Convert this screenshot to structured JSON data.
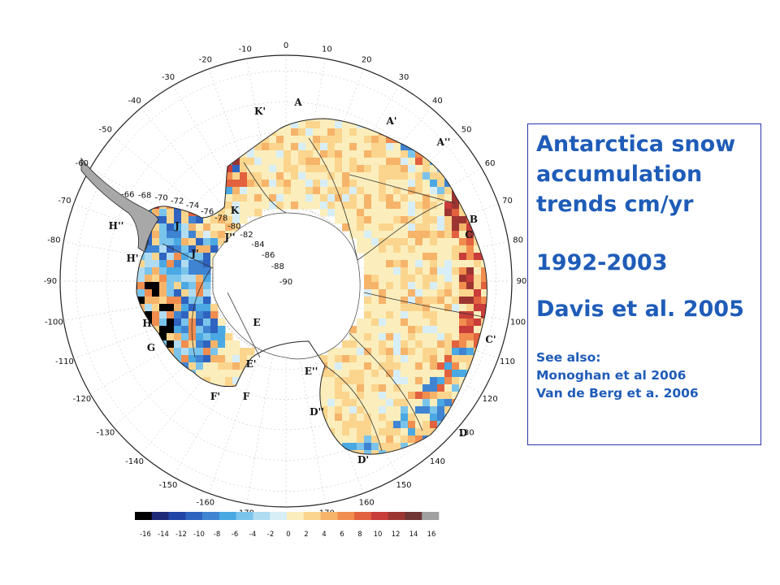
{
  "text_box": {
    "title_lines": [
      "Antarctica snow",
      "accumulation",
      "trends cm/yr"
    ],
    "period": "1992-2003",
    "citation": "Davis et al. 2005",
    "see_also_label": "See also:",
    "see_also_refs": [
      "Monoghan et al 2006",
      "Van de Berg et a. 2006"
    ]
  },
  "map": {
    "projection": "polar-stereographic",
    "pole": "south",
    "center_label": "-90",
    "longitude_labels": [
      "0",
      "10",
      "20",
      "30",
      "40",
      "50",
      "60",
      "70",
      "80",
      "90",
      "100",
      "110",
      "120",
      "130",
      "140",
      "150",
      "160",
      "170",
      "180",
      "-170",
      "-160",
      "-150",
      "-140",
      "-130",
      "-120",
      "-110",
      "-100",
      "-90",
      "-80",
      "-70",
      "-60",
      "-50",
      "-40",
      "-30",
      "-20",
      "-10"
    ],
    "latitude_labels": [
      "-66",
      "-68",
      "-70",
      "-72",
      "-74",
      "-76",
      "-78",
      "-80",
      "-82",
      "-84",
      "-86",
      "-88"
    ],
    "basin_labels": [
      "A",
      "A'",
      "A''",
      "B",
      "C",
      "C'",
      "D",
      "D'",
      "D''",
      "E",
      "E'",
      "E''",
      "F",
      "F'",
      "G",
      "H",
      "H'",
      "H''",
      "J",
      "J'",
      "J''",
      "K",
      "K'"
    ]
  },
  "colorbar": {
    "tick_labels": [
      "-16",
      "-14",
      "-12",
      "-10",
      "-8",
      "-6",
      "-4",
      "-2",
      "0",
      "2",
      "4",
      "6",
      "8",
      "10",
      "12",
      "14",
      "16"
    ],
    "colors": [
      "#000000",
      "#1e2a78",
      "#2244a6",
      "#2f63c0",
      "#3f84d2",
      "#4aa8e2",
      "#7ac4ec",
      "#b0dcf2",
      "#d7eef7",
      "#fbeebc",
      "#fbd58e",
      "#f6b46a",
      "#f18d4e",
      "#e2613e",
      "#c83c3a",
      "#9c3532",
      "#6f3434",
      "#a0a0a0"
    ]
  }
}
